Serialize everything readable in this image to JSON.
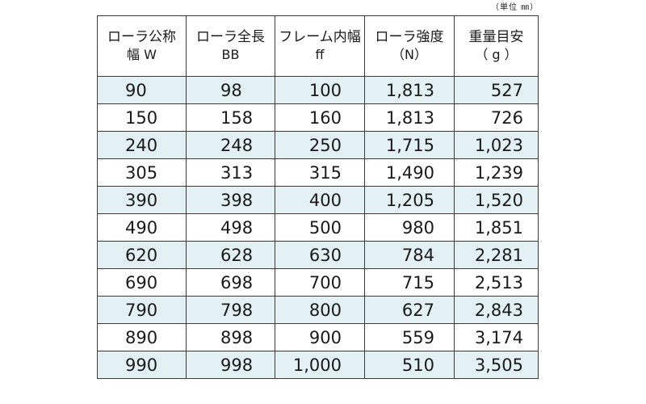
{
  "unit_note": "（単位 ㎜）",
  "table": {
    "headers": [
      {
        "line1": "ローラ公称",
        "line2": "幅 W"
      },
      {
        "line1": "ローラ全長",
        "line2": "BB"
      },
      {
        "line1": "フレーム内幅",
        "line2": "ff"
      },
      {
        "line1": "ローラ強度",
        "line2": "（N）"
      },
      {
        "line1": "重量目安",
        "line2": "（ g ）"
      }
    ],
    "rows": [
      [
        "90",
        "98",
        "100",
        "1,813",
        "527"
      ],
      [
        "150",
        "158",
        "160",
        "1,813",
        "726"
      ],
      [
        "240",
        "248",
        "250",
        "1,715",
        "1,023"
      ],
      [
        "305",
        "313",
        "315",
        "1,490",
        "1,239"
      ],
      [
        "390",
        "398",
        "400",
        "1,205",
        "1,520"
      ],
      [
        "490",
        "498",
        "500",
        "980",
        "1,851"
      ],
      [
        "620",
        "628",
        "630",
        "784",
        "2,281"
      ],
      [
        "690",
        "698",
        "700",
        "715",
        "2,513"
      ],
      [
        "790",
        "798",
        "800",
        "627",
        "2,843"
      ],
      [
        "890",
        "898",
        "900",
        "559",
        "3,174"
      ],
      [
        "990",
        "998",
        "1,000",
        "510",
        "3,505"
      ]
    ]
  },
  "colors": {
    "row_tint": "#e3f0f4",
    "row_plain": "#ffffff",
    "border": "#3a3a3a"
  }
}
